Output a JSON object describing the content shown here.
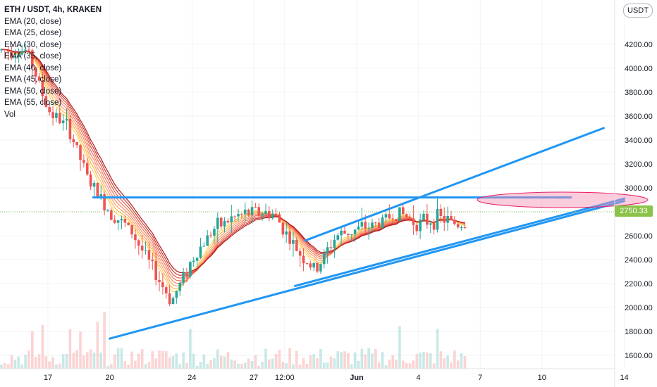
{
  "header": {
    "symbol": "ETH / USDT, 4h, KRAKEN",
    "indicators": [
      "EMA (20, close)",
      "EMA (25, close)",
      "EMA (30, close)",
      "EMA (35, close)",
      "EMA (40, close)",
      "EMA (45, close)",
      "EMA (50, close)",
      "EMA (55, close)",
      "Vol"
    ],
    "currency_unit": "USDT"
  },
  "last_price": "2750.33",
  "colors": {
    "up": "#26a69a",
    "down": "#ef5350",
    "trendline": "#2196f3",
    "ellipse_fill": "#f48fb1",
    "ellipse_stroke": "#e91e63",
    "last_price_tag": "#8bc34a",
    "ema_fast": "#ffd54f",
    "ema_slow": "#b71c1c"
  },
  "chart_data": {
    "type": "candlestick",
    "title": "ETH / USDT, 4h, KRAKEN",
    "x_tick_labels": [
      "17",
      "20",
      "24",
      "27",
      "12:00",
      "Jun",
      "4",
      "7",
      "10",
      "14"
    ],
    "y_tick_labels": [
      "1600.00",
      "1800.00",
      "2000.00",
      "2200.00",
      "2400.00",
      "2600.00",
      "2800.00",
      "3000.00",
      "3200.00",
      "3400.00",
      "3600.00",
      "3800.00",
      "4000.00",
      "4200.00"
    ],
    "ylim": [
      1500,
      4370
    ],
    "approx_close_path": [
      {
        "date": "May 16",
        "price": 4150
      },
      {
        "date": "May 17",
        "price": 3650
      },
      {
        "date": "May 18",
        "price": 3500
      },
      {
        "date": "May 19",
        "price": 3050
      },
      {
        "date": "May 20",
        "price": 2800
      },
      {
        "date": "May 21",
        "price": 2650
      },
      {
        "date": "May 22",
        "price": 2350
      },
      {
        "date": "May 23",
        "price": 2050
      },
      {
        "date": "May 24",
        "price": 2400
      },
      {
        "date": "May 25",
        "price": 2650
      },
      {
        "date": "May 26",
        "price": 2750
      },
      {
        "date": "May 27",
        "price": 2800
      },
      {
        "date": "May 28",
        "price": 2780
      },
      {
        "date": "May 29",
        "price": 2500
      },
      {
        "date": "May 30",
        "price": 2300
      },
      {
        "date": "May 31",
        "price": 2600
      },
      {
        "date": "Jun 1",
        "price": 2650
      },
      {
        "date": "Jun 2",
        "price": 2700
      },
      {
        "date": "Jun 3",
        "price": 2800
      },
      {
        "date": "Jun 4",
        "price": 2700
      },
      {
        "date": "Jun 5",
        "price": 2750
      },
      {
        "date": "Jun 6",
        "price": 2690
      },
      {
        "date": "Jun 7",
        "price": 2750
      }
    ],
    "drawings": {
      "horizontal_resistance": 2920,
      "upper_channel": {
        "from": {
          "date": "May 29 12:00",
          "price": 2560
        },
        "to": {
          "date": "Jun 13",
          "price": 3500
        }
      },
      "lower_channel": {
        "from": {
          "date": "May 29",
          "price": 2180
        },
        "to": {
          "date": "Jun 14",
          "price": 2910
        }
      },
      "long_trendline": {
        "from": {
          "date": "May 20",
          "price": 1740
        },
        "to": {
          "date": "Jun 14",
          "price": 2890
        }
      },
      "highlight_zone_price": 2900
    }
  }
}
